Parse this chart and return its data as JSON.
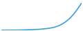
{
  "line_color": "#3d9fd3",
  "line_width": 1.2,
  "background_color": "#ffffff",
  "y_values": [
    100,
    100,
    101,
    101,
    102,
    102,
    103,
    103,
    104,
    105,
    106,
    107,
    109,
    111,
    112,
    114,
    116,
    119,
    121,
    124,
    128,
    133,
    138,
    144,
    152,
    161,
    172,
    186,
    203,
    224,
    250,
    280,
    315,
    355,
    400,
    452,
    510,
    575,
    645,
    720,
    800
  ],
  "ylim": [
    95,
    870
  ],
  "xlim": [
    0,
    40
  ]
}
